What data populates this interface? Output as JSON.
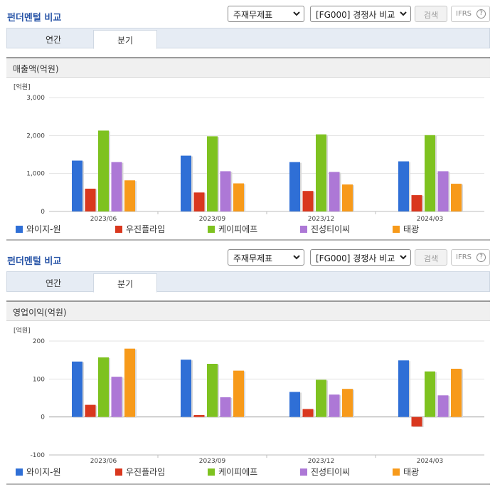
{
  "colors": {
    "series": [
      "#2f6fd6",
      "#d9371e",
      "#7ec220",
      "#ad78d6",
      "#f79a1a"
    ],
    "title": "#2a56a8",
    "gridline": "#e3e3e3"
  },
  "panels": [
    {
      "title": "펀더멘털 비교",
      "statement_select": "주재무제표",
      "compare_select": "[FG000] 경쟁사 비교",
      "search_label": "검색",
      "ifrs_label": "IFRS",
      "help_icon_glyph": "?",
      "tabs": [
        {
          "label": "연간"
        },
        {
          "label": "분기",
          "active": true
        }
      ],
      "section_title": "매출액(억원)"
    },
    {
      "title": "펀더멘털 비교",
      "statement_select": "주재무제표",
      "compare_select": "[FG000] 경쟁사 비교",
      "search_label": "검색",
      "ifrs_label": "IFRS",
      "help_icon_glyph": "?",
      "tabs": [
        {
          "label": "연간"
        },
        {
          "label": "분기",
          "active": true
        }
      ],
      "section_title": "영업이익(억원)"
    }
  ],
  "chart_data": [
    {
      "type": "bar",
      "unit_label": "[억원]",
      "categories": [
        "2023/06",
        "2023/09",
        "2023/12",
        "2024/03"
      ],
      "ylim": [
        0,
        3000
      ],
      "yticks": [
        0,
        1000,
        2000,
        3000
      ],
      "ytick_labels": [
        "0",
        "1,000",
        "2,000",
        "3,000"
      ],
      "grid": true,
      "legend_position": "bottom",
      "series": [
        {
          "name": "와이지-원",
          "values": [
            1340,
            1470,
            1300,
            1320
          ]
        },
        {
          "name": "우진플라임",
          "values": [
            600,
            500,
            540,
            430
          ]
        },
        {
          "name": "케이피에프",
          "values": [
            2130,
            1980,
            2030,
            2010
          ]
        },
        {
          "name": "진성티이씨",
          "values": [
            1300,
            1060,
            1040,
            1060
          ]
        },
        {
          "name": "태광",
          "values": [
            820,
            740,
            710,
            730
          ]
        }
      ]
    },
    {
      "type": "bar",
      "unit_label": "[억원]",
      "categories": [
        "2023/06",
        "2023/09",
        "2023/12",
        "2024/03"
      ],
      "ylim": [
        -100,
        200
      ],
      "yticks": [
        -100,
        0,
        100,
        200
      ],
      "ytick_labels": [
        "-100",
        "0",
        "100",
        "200"
      ],
      "grid": true,
      "legend_position": "bottom",
      "series": [
        {
          "name": "와이지-원",
          "values": [
            146,
            151,
            66,
            149
          ]
        },
        {
          "name": "우진플라임",
          "values": [
            32,
            5,
            21,
            -25
          ]
        },
        {
          "name": "케이피에프",
          "values": [
            157,
            140,
            98,
            120
          ]
        },
        {
          "name": "진성티이씨",
          "values": [
            106,
            52,
            59,
            57
          ]
        },
        {
          "name": "태광",
          "values": [
            180,
            122,
            74,
            127
          ]
        }
      ]
    }
  ]
}
